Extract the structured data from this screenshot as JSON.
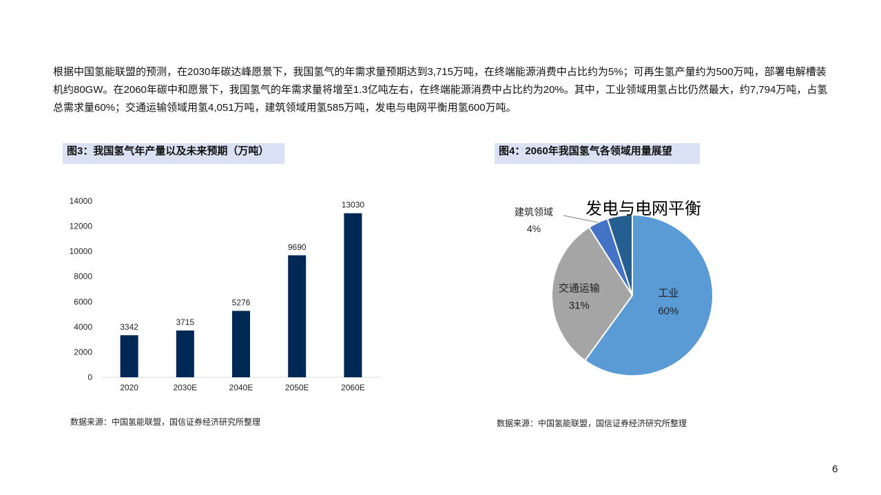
{
  "intro_text": "根据中国氢能联盟的预测，在2030年碳达峰愿景下，我国氢气的年需求量预期达到3,715万吨，在终端能源消费中占比约为5%；可再生氢产量约为500万吨，部署电解槽装机约80GW。在2060年碳中和愿景下，我国氢气的年需求量将增至1.3亿吨左右，在终端能源消费中占比约为20%。其中，工业领域用氢占比仍然最大，约7,794万吨，占氢总需求量60%；交通运输领域用氢4,051万吨，建筑领域用氢585万吨，发电与电网平衡用氢600万吨。",
  "page_number": "6",
  "colors": {
    "bar": "#002855",
    "title_bg": "#d9e1f2",
    "pie_industry": "#5b9bd5",
    "pie_transport": "#a5a5a5",
    "pie_building": "#4472c4",
    "pie_power": "#255e91"
  },
  "fig3": {
    "title": "图3：我国氢气年产量以及未来预期（万吨）",
    "source": "数据来源：中国氢能联盟，国信证券经济研究所整理"
  },
  "fig4": {
    "title": "图4：2060年我国氢气各领域用量展望",
    "source": "数据来源：中国氢能联盟，国信证券经济研究所整理"
  },
  "chart_data": [
    {
      "type": "bar",
      "categories": [
        "2020",
        "2030E",
        "2040E",
        "2050E",
        "2060E"
      ],
      "values": [
        3342,
        3715,
        5276,
        9690,
        13030
      ],
      "title": "图3：我国氢气年产量以及未来预期（万吨）",
      "ylim": [
        0,
        14000
      ],
      "yticks": [
        0,
        2000,
        4000,
        6000,
        8000,
        10000,
        12000,
        14000
      ],
      "grid": false,
      "data_labels": true
    },
    {
      "type": "pie",
      "title": "图4：2060年我国氢气各领域用量展望",
      "slices": [
        {
          "label": "工业",
          "value": 60,
          "display": "60%",
          "color": "#5b9bd5"
        },
        {
          "label": "交通运输",
          "value": 31,
          "display": "31%",
          "color": "#a5a5a5"
        },
        {
          "label": "建筑领域",
          "value": 4,
          "display": "4%",
          "color": "#4472c4"
        },
        {
          "label": "发电与电网平衡",
          "value": 5,
          "display": "",
          "color": "#255e91"
        }
      ]
    }
  ]
}
